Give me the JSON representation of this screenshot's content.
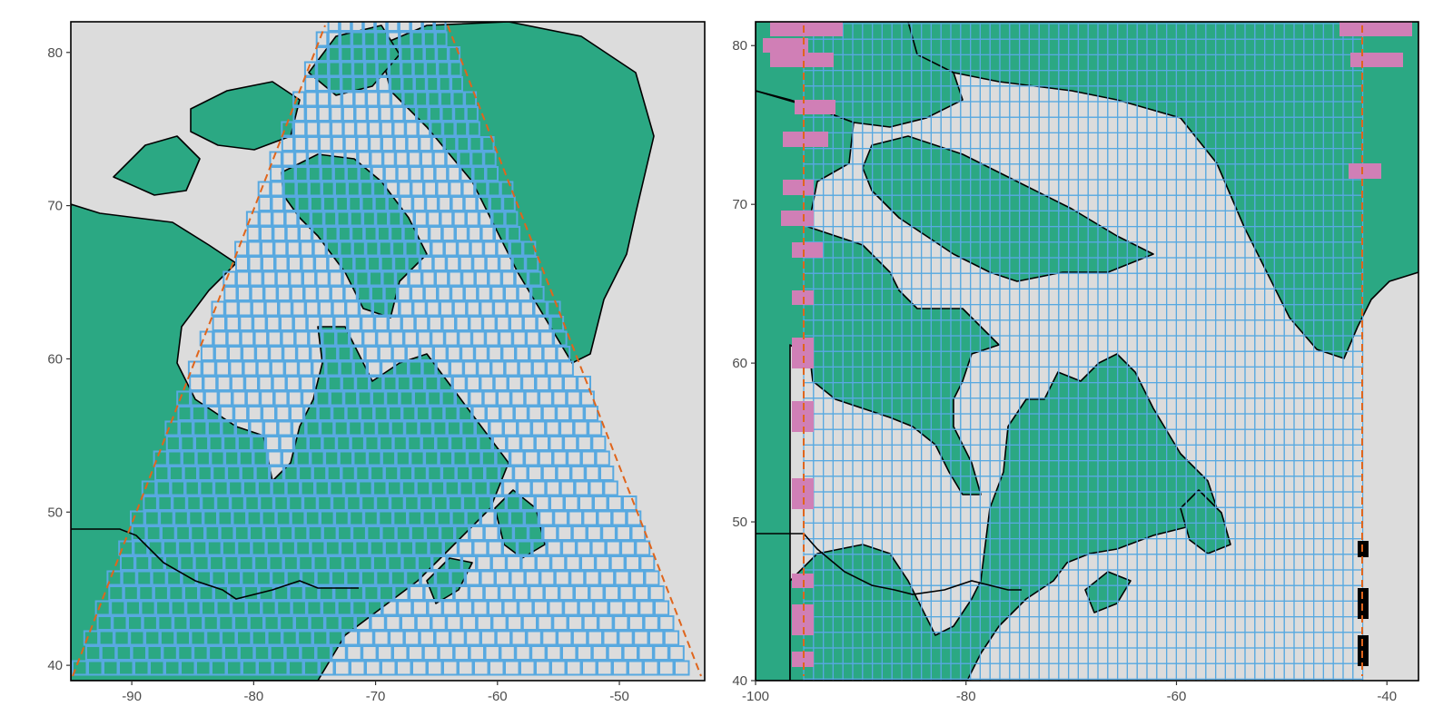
{
  "colors": {
    "ocean": "#dcdcdc",
    "land": "#2ba883",
    "land_outline": "#000000",
    "grid_cell": "#58a9e0",
    "wedge_edge": "#e0651c",
    "problem_cell_pink": "#d07fb6",
    "problem_cell_black": "#000000"
  },
  "panels": [
    {
      "id": "left",
      "projection": "oblique-conic",
      "x_ticks": [
        "-90",
        "-80",
        "-70",
        "-60",
        "-50"
      ],
      "y_ticks": [
        "40",
        "50",
        "60",
        "70",
        "80"
      ],
      "lon_range": [
        -95,
        -43
      ],
      "lat_range": [
        39,
        82
      ]
    },
    {
      "id": "right",
      "projection": "equirectangular",
      "x_ticks": [
        "-100",
        "-80",
        "-60",
        "-40"
      ],
      "y_ticks": [
        "40",
        "50",
        "60",
        "70",
        "80"
      ],
      "lon_range": [
        -100,
        -37
      ],
      "lat_range": [
        40,
        81.5
      ]
    }
  ]
}
